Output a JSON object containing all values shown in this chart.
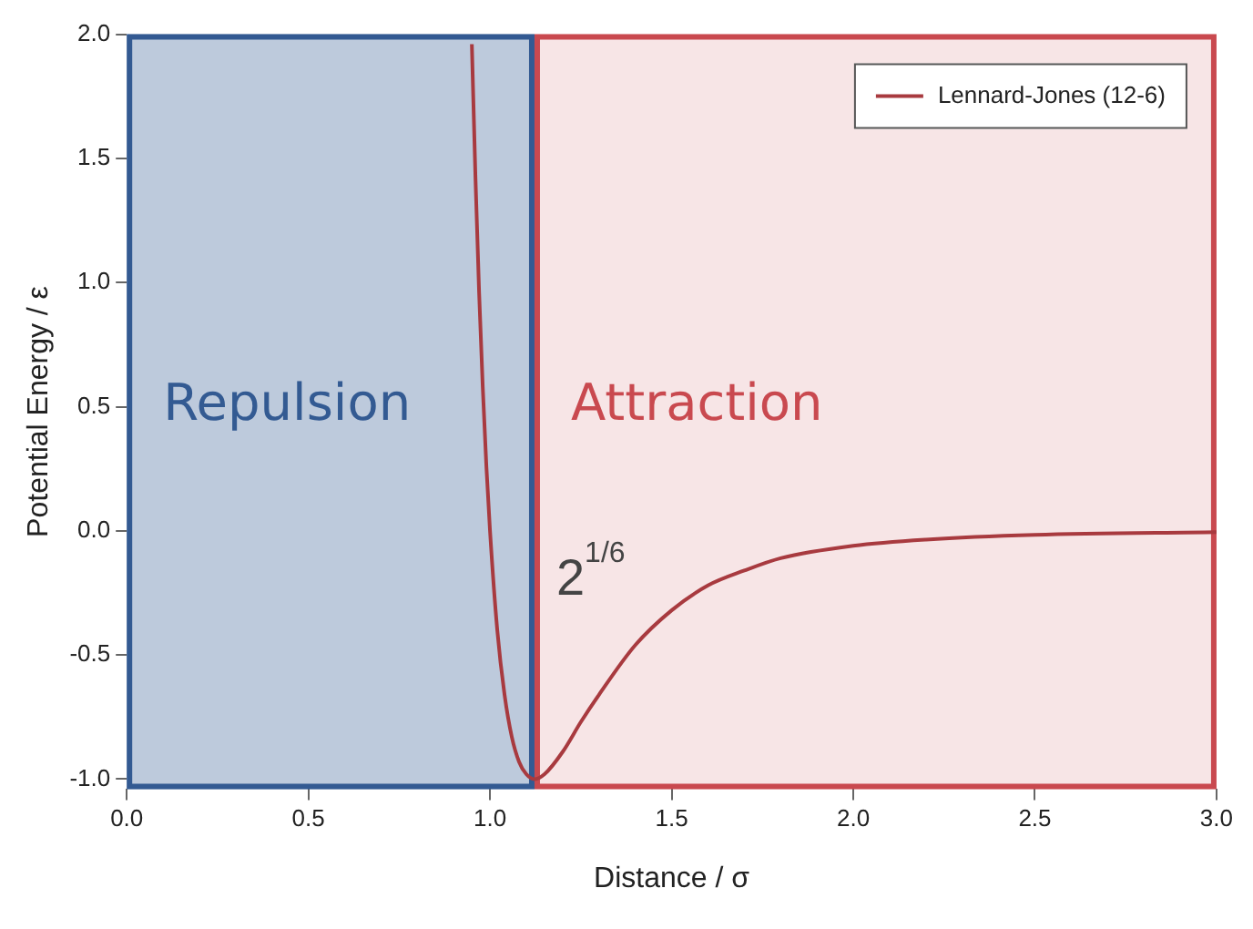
{
  "chart_data": {
    "type": "line",
    "xlabel": "Distance / σ",
    "ylabel": "Potential Energy / ε",
    "xlim": [
      0,
      3
    ],
    "ylim": [
      -1.04,
      2.0
    ],
    "xticks": [
      {
        "value": 0,
        "label": "0.0"
      },
      {
        "value": 0.5,
        "label": "0.5"
      },
      {
        "value": 1,
        "label": "1.0"
      },
      {
        "value": 1.5,
        "label": "1.5"
      },
      {
        "value": 2,
        "label": "2.0"
      },
      {
        "value": 2.5,
        "label": "2.5"
      },
      {
        "value": 3,
        "label": "3.0"
      }
    ],
    "yticks": [
      {
        "value": -1,
        "label": "-1.0"
      },
      {
        "value": -0.5,
        "label": "-0.5"
      },
      {
        "value": 0,
        "label": "0.0"
      },
      {
        "value": 0.5,
        "label": "0.5"
      },
      {
        "value": 1,
        "label": "1.0"
      },
      {
        "value": 1.5,
        "label": "1.5"
      },
      {
        "value": 2,
        "label": "2.0"
      }
    ],
    "grid": false,
    "legend": "top right",
    "marker": "none",
    "line_style": "solid",
    "series": [
      {
        "name": "Lennard-Jones (12-6)",
        "color": "#a83a3f",
        "x": [
          0.95,
          0.96,
          0.97,
          0.98,
          0.99,
          1.0,
          1.02,
          1.04,
          1.06,
          1.08,
          1.1,
          1.1225,
          1.15,
          1.2,
          1.25,
          1.3,
          1.4,
          1.5,
          1.6,
          1.7,
          1.8,
          2.0,
          2.2,
          2.5,
          3.0
        ],
        "values": [
          1.96,
          1.42,
          0.96,
          0.58,
          0.26,
          0,
          -0.4,
          -0.66,
          -0.83,
          -0.93,
          -0.98,
          -1.0,
          -0.98,
          -0.89,
          -0.77,
          -0.66,
          -0.46,
          -0.32,
          -0.22,
          -0.16,
          -0.11,
          -0.06,
          -0.035,
          -0.016,
          -0.005
        ]
      }
    ],
    "bands": [
      {
        "axis": "x",
        "from": 0,
        "to": 1.1225,
        "label": "Repulsion",
        "color": "#335a92"
      },
      {
        "axis": "x",
        "from": 1.1225,
        "to": 3,
        "label": "Attraction",
        "color": "#c9494f"
      }
    ],
    "annotations": [
      {
        "text": "2$^{1/6}$",
        "x": 1.1225,
        "y": 0
      }
    ]
  }
}
